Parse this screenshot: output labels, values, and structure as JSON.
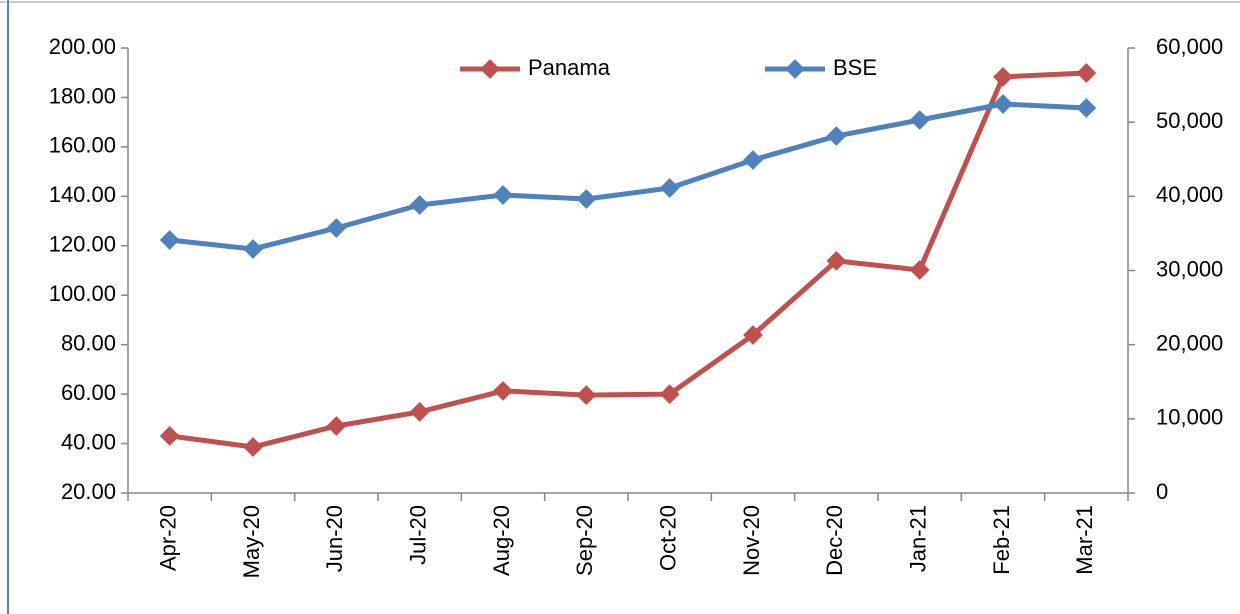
{
  "chart_data": {
    "type": "line",
    "categories": [
      "Apr-20",
      "May-20",
      "Jun-20",
      "Jul-20",
      "Aug-20",
      "Sep-20",
      "Oct-20",
      "Nov-20",
      "Dec-20",
      "Jan-21",
      "Feb-21",
      "Mar-21"
    ],
    "series": [
      {
        "name": "Panama",
        "color": "#c0504d",
        "values": [
          43.1,
          38.6,
          47.1,
          52.8,
          61.3,
          59.6,
          60.0,
          83.9,
          113.9,
          110.2,
          188.3,
          189.9
        ]
      },
      {
        "name": "BSE",
        "color": "#4f81bd",
        "axis": "y2",
        "values": [
          34110,
          32900,
          35730,
          38830,
          40180,
          39640,
          41120,
          44900,
          48130,
          50290,
          52450,
          51910
        ]
      }
    ],
    "ylim": [
      20,
      200
    ],
    "yticks": [
      {
        "value": 20,
        "label": "20.00"
      },
      {
        "value": 40,
        "label": "40.00"
      },
      {
        "value": 60,
        "label": "60.00"
      },
      {
        "value": 80,
        "label": "80.00"
      },
      {
        "value": 100,
        "label": "100.00"
      },
      {
        "value": 120,
        "label": "120.00"
      },
      {
        "value": 140,
        "label": "140.00"
      },
      {
        "value": 160,
        "label": "160.00"
      },
      {
        "value": 180,
        "label": "180.00"
      },
      {
        "value": 200,
        "label": "200.00"
      }
    ],
    "y2lim": [
      0,
      60000
    ],
    "y2ticks": [
      0,
      {
        "value": 10000,
        "label": "10,000"
      },
      {
        "value": 20000,
        "label": "20,000"
      },
      {
        "value": 30000,
        "label": "30,000"
      },
      {
        "value": 40000,
        "label": "40,000"
      },
      {
        "value": 50000,
        "label": "50,000"
      },
      {
        "value": 60000,
        "label": "60,000"
      }
    ],
    "legend": "top",
    "grid": false
  }
}
